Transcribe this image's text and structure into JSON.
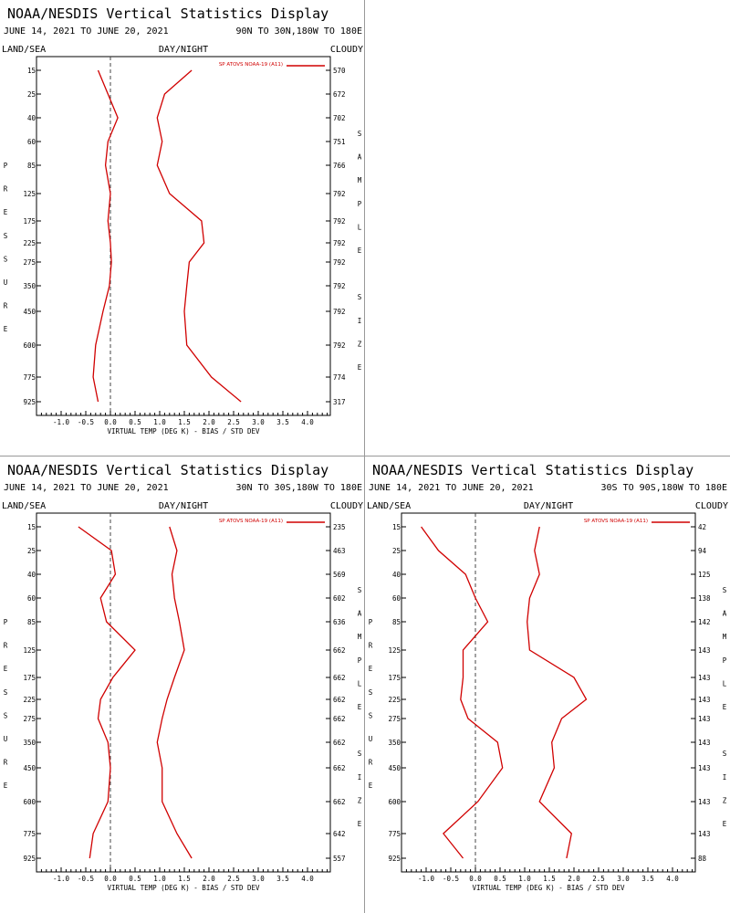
{
  "chart_data": [
    {
      "type": "line",
      "title": "NOAA/NESDIS Vertical Statistics Display",
      "date_range": "JUNE 14, 2021 TO JUNE 20, 2021",
      "region": "90N TO 30N,180W TO 180E",
      "corner_labels": {
        "left": "LAND/SEA",
        "center": "DAY/NIGHT",
        "right": "CLOUDY"
      },
      "left_axis_label": "PRESSURE",
      "right_axis_label": "SAMPLE SIZE",
      "xlabel": "VIRTUAL TEMP (DEG K) - BIAS / STD DEV",
      "xlim": [
        -1.5,
        4.5
      ],
      "x_ticks": [
        "-1.0",
        "-0.5",
        "0.0",
        "0.5",
        "1.0",
        "1.5",
        "2.0",
        "2.5",
        "3.0",
        "3.5",
        "4.0"
      ],
      "legend": "SP ATOVS NOAA-19 (A11)",
      "levels": [
        "15",
        "25",
        "40",
        "60",
        "85",
        "125",
        "175",
        "225",
        "275",
        "350",
        "450",
        "600",
        "775",
        "925"
      ],
      "sample_size": [
        "570",
        "672",
        "702",
        "751",
        "766",
        "792",
        "792",
        "792",
        "792",
        "792",
        "792",
        "792",
        "774",
        "317"
      ],
      "series": [
        {
          "role": "bias",
          "values": [
            -0.25,
            -0.05,
            0.15,
            -0.05,
            -0.1,
            0.0,
            -0.05,
            0.0,
            0.02,
            -0.02,
            -0.15,
            -0.3,
            -0.35,
            -0.25
          ]
        },
        {
          "role": "std_dev",
          "values": [
            1.65,
            1.1,
            0.95,
            1.05,
            0.95,
            1.2,
            1.85,
            1.9,
            1.6,
            1.55,
            1.5,
            1.55,
            2.05,
            2.65
          ]
        }
      ]
    },
    {
      "type": "line",
      "title": "NOAA/NESDIS Vertical Statistics Display",
      "date_range": "JUNE 14, 2021 TO JUNE 20, 2021",
      "region": "30N TO 30S,180W TO 180E",
      "corner_labels": {
        "left": "LAND/SEA",
        "center": "DAY/NIGHT",
        "right": "CLOUDY"
      },
      "left_axis_label": "PRESSURE",
      "right_axis_label": "SAMPLE SIZE",
      "xlabel": "VIRTUAL TEMP (DEG K) - BIAS / STD DEV",
      "xlim": [
        -1.5,
        4.5
      ],
      "x_ticks": [
        "-1.0",
        "-0.5",
        "0.0",
        "0.5",
        "1.0",
        "1.5",
        "2.0",
        "2.5",
        "3.0",
        "3.5",
        "4.0"
      ],
      "legend": "SP ATOVS NOAA-19 (A11)",
      "levels": [
        "15",
        "25",
        "40",
        "60",
        "85",
        "125",
        "175",
        "225",
        "275",
        "350",
        "450",
        "600",
        "775",
        "925"
      ],
      "sample_size": [
        "235",
        "463",
        "569",
        "602",
        "636",
        "662",
        "662",
        "662",
        "662",
        "662",
        "662",
        "662",
        "642",
        "557"
      ],
      "series": [
        {
          "role": "bias",
          "values": [
            -0.65,
            0.02,
            0.1,
            -0.2,
            -0.08,
            0.5,
            0.05,
            -0.2,
            -0.25,
            -0.05,
            0.0,
            -0.05,
            -0.35,
            -0.42
          ]
        },
        {
          "role": "std_dev",
          "values": [
            1.2,
            1.35,
            1.25,
            1.3,
            1.4,
            1.5,
            1.3,
            1.15,
            1.05,
            0.95,
            1.05,
            1.05,
            1.35,
            1.65
          ]
        }
      ]
    },
    {
      "type": "line",
      "title": "NOAA/NESDIS Vertical Statistics Display",
      "date_range": "JUNE 14, 2021 TO JUNE 20, 2021",
      "region": "30S TO 90S,180W TO 180E",
      "corner_labels": {
        "left": "LAND/SEA",
        "center": "DAY/NIGHT",
        "right": "CLOUDY"
      },
      "left_axis_label": "PRESSURE",
      "right_axis_label": "SAMPLE SIZE",
      "xlabel": "VIRTUAL TEMP (DEG K) - BIAS / STD DEV",
      "xlim": [
        -1.5,
        4.5
      ],
      "x_ticks": [
        "-1.0",
        "-0.5",
        "0.0",
        "0.5",
        "1.0",
        "1.5",
        "2.0",
        "2.5",
        "3.0",
        "3.5",
        "4.0"
      ],
      "legend": "SP ATOVS NOAA-19 (A11)",
      "levels": [
        "15",
        "25",
        "40",
        "60",
        "85",
        "125",
        "175",
        "225",
        "275",
        "350",
        "450",
        "600",
        "775",
        "925"
      ],
      "sample_size": [
        "42",
        "94",
        "125",
        "138",
        "142",
        "143",
        "143",
        "143",
        "143",
        "143",
        "143",
        "143",
        "143",
        "88"
      ],
      "series": [
        {
          "role": "bias",
          "values": [
            -1.1,
            -0.75,
            -0.2,
            0.0,
            0.25,
            -0.25,
            -0.25,
            -0.3,
            -0.15,
            0.45,
            0.55,
            0.05,
            -0.65,
            -0.25
          ]
        },
        {
          "role": "std_dev",
          "values": [
            1.3,
            1.2,
            1.3,
            1.1,
            1.05,
            1.1,
            2.0,
            2.25,
            1.75,
            1.55,
            1.6,
            1.3,
            1.95,
            1.85
          ]
        }
      ]
    }
  ]
}
